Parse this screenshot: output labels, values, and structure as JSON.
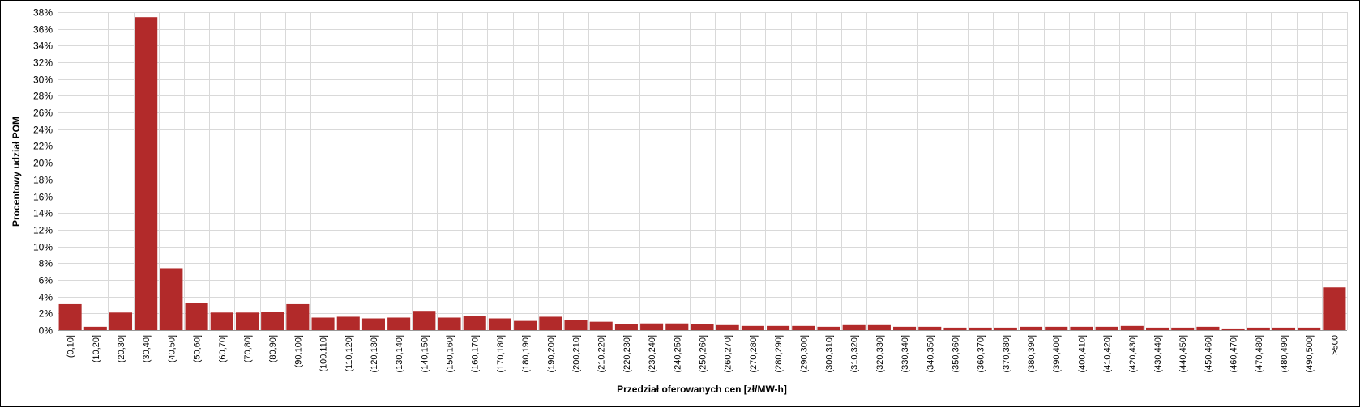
{
  "chart_data": {
    "type": "bar",
    "x_label": "Przedział oferowanych cen [zł/MW-h]",
    "y_label": "Procentowy udział POM",
    "categories": [
      "(0,10]",
      "(10,20]",
      "(20,30]",
      "(30,40]",
      "(40,50]",
      "(50,60]",
      "(60,70]",
      "(70,80]",
      "(80,90]",
      "(90,100]",
      "(100,110]",
      "(110,120]",
      "(120,130]",
      "(130,140]",
      "(140,150]",
      "(150,160]",
      "(160,170]",
      "(170,180]",
      "(180,190]",
      "(190,200]",
      "(200,210]",
      "(210,220]",
      "(220,230]",
      "(230,240]",
      "(240,250]",
      "(250,260]",
      "(260,270]",
      "(270,280]",
      "(280,290]",
      "(290,300]",
      "(300,310]",
      "(310,320]",
      "(320,330]",
      "(330,340]",
      "(340,350]",
      "(350,360]",
      "(360,370]",
      "(370,380]",
      "(380,390]",
      "(390,400]",
      "(400,410]",
      "(410,420]",
      "(420,430]",
      "(430,440]",
      "(440,450]",
      "(450,460]",
      "(460,470]",
      "(470,480]",
      "(480,490]",
      "(490,500]",
      ">500"
    ],
    "values": [
      3.1,
      0.4,
      2.1,
      37.4,
      7.4,
      3.2,
      2.1,
      2.1,
      2.2,
      3.1,
      1.5,
      1.6,
      1.4,
      1.5,
      2.3,
      1.5,
      1.7,
      1.4,
      1.1,
      1.6,
      1.2,
      1.0,
      0.7,
      0.8,
      0.8,
      0.7,
      0.6,
      0.5,
      0.5,
      0.5,
      0.4,
      0.6,
      0.6,
      0.4,
      0.4,
      0.3,
      0.3,
      0.3,
      0.4,
      0.4,
      0.4,
      0.4,
      0.5,
      0.3,
      0.3,
      0.4,
      0.2,
      0.3,
      0.3,
      0.3,
      5.1
    ],
    "color": "#b22a2a",
    "ylim": [
      0,
      38
    ],
    "yticks": [
      {
        "value": 0,
        "label": "0%"
      },
      {
        "value": 2,
        "label": "2%"
      },
      {
        "value": 4,
        "label": "4%"
      },
      {
        "value": 6,
        "label": "6%"
      },
      {
        "value": 8,
        "label": "8%"
      },
      {
        "value": 10,
        "label": "10%"
      },
      {
        "value": 12,
        "label": "12%"
      },
      {
        "value": 14,
        "label": "14%"
      },
      {
        "value": 16,
        "label": "16%"
      },
      {
        "value": 18,
        "label": "18%"
      },
      {
        "value": 20,
        "label": "20%"
      },
      {
        "value": 22,
        "label": "22%"
      },
      {
        "value": 24,
        "label": "24%"
      },
      {
        "value": 26,
        "label": "26%"
      },
      {
        "value": 28,
        "label": "28%"
      },
      {
        "value": 30,
        "label": "30%"
      },
      {
        "value": 32,
        "label": "32%"
      },
      {
        "value": 34,
        "label": "34%"
      },
      {
        "value": 36,
        "label": "36%"
      },
      {
        "value": 38,
        "label": "38%"
      }
    ],
    "grid": true
  }
}
